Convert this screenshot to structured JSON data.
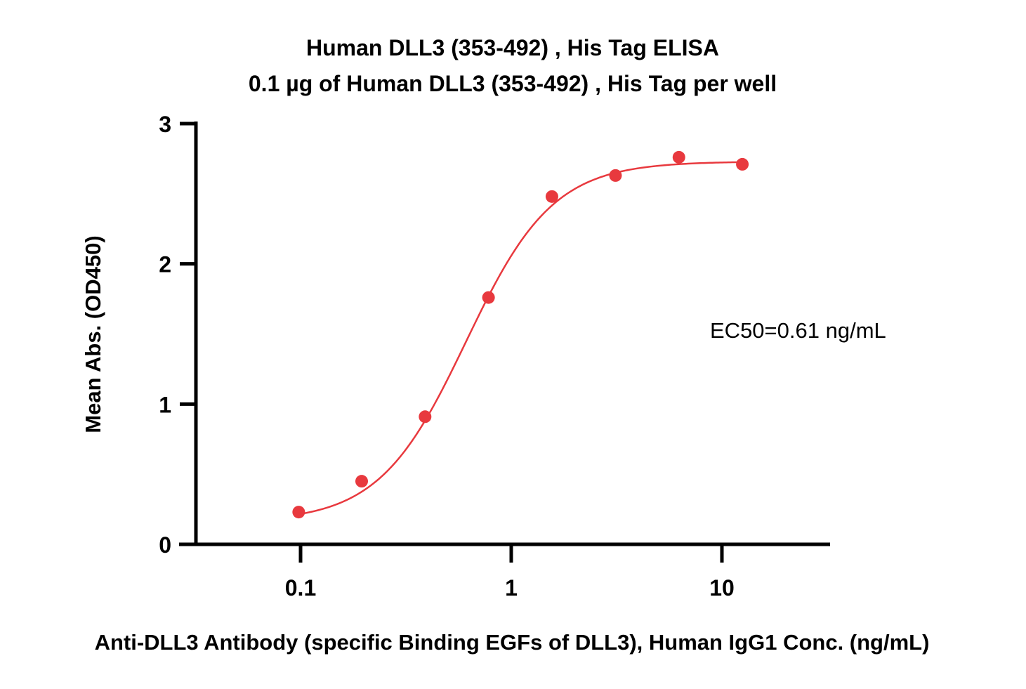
{
  "chart_data": {
    "type": "scatter",
    "title": "Human DLL3 (353-492) , His Tag ELISA",
    "subtitle": "0.1 µg of Human DLL3 (353-492) , His Tag per well",
    "xlabel": "Anti-DLL3 Antibody (specific Binding EGFs of DLL3), Human IgG1 Conc. (ng/mL)",
    "ylabel": "Mean Abs. (OD450)",
    "x_scale": "log",
    "xlim": [
      0.035,
      30
    ],
    "ylim": [
      0,
      3
    ],
    "x_ticks": [
      0.1,
      1,
      10
    ],
    "x_tick_labels": [
      "0.1",
      "1",
      "10"
    ],
    "y_ticks": [
      0,
      1,
      2,
      3
    ],
    "y_tick_labels": [
      "0",
      "1",
      "2",
      "3"
    ],
    "grid": false,
    "series": [
      {
        "color": "#e8393e",
        "x": [
          0.098,
          0.195,
          0.39,
          0.78,
          1.56,
          3.125,
          6.25,
          12.5
        ],
        "y": [
          0.23,
          0.45,
          0.91,
          1.76,
          2.48,
          2.63,
          2.76,
          2.71
        ]
      }
    ],
    "fit": {
      "model": "4PL",
      "bottom": 0.16,
      "top": 2.73,
      "ec50": 0.61,
      "hill": 2.1,
      "color": "#e8393e"
    },
    "annotation": "EC50=0.61 ng/mL"
  }
}
